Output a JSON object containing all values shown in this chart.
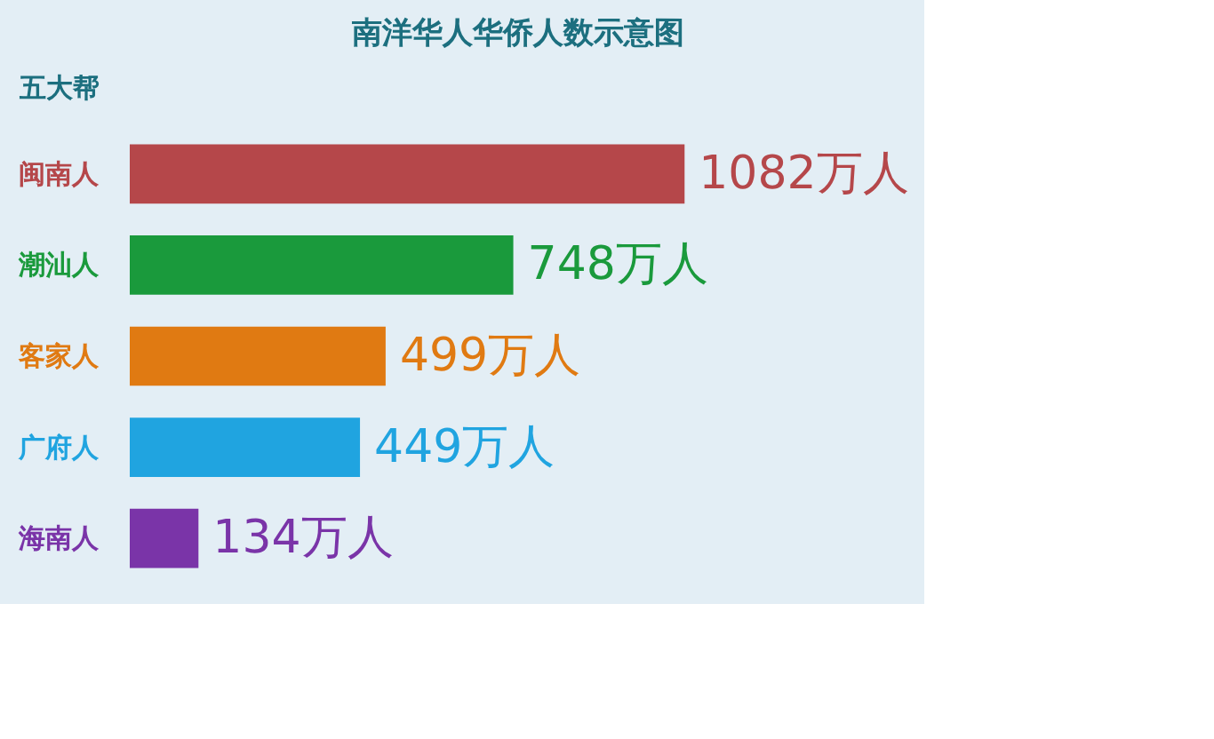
{
  "chart_data": {
    "type": "bar",
    "orientation": "horizontal",
    "title": "南洋华人华侨人数示意图",
    "ylabel": "五大帮",
    "categories": [
      "闽南人",
      "潮汕人",
      "客家人",
      "广府人",
      "海南人"
    ],
    "values": [
      1082,
      748,
      499,
      449,
      134
    ],
    "colors": [
      "#b5474a",
      "#1a9a3c",
      "#e07a12",
      "#20a4e0",
      "#7a34a8"
    ],
    "value_labels": [
      "1082万人",
      "748万人",
      "499万人",
      "449万人",
      "134万人"
    ],
    "grid": false
  }
}
